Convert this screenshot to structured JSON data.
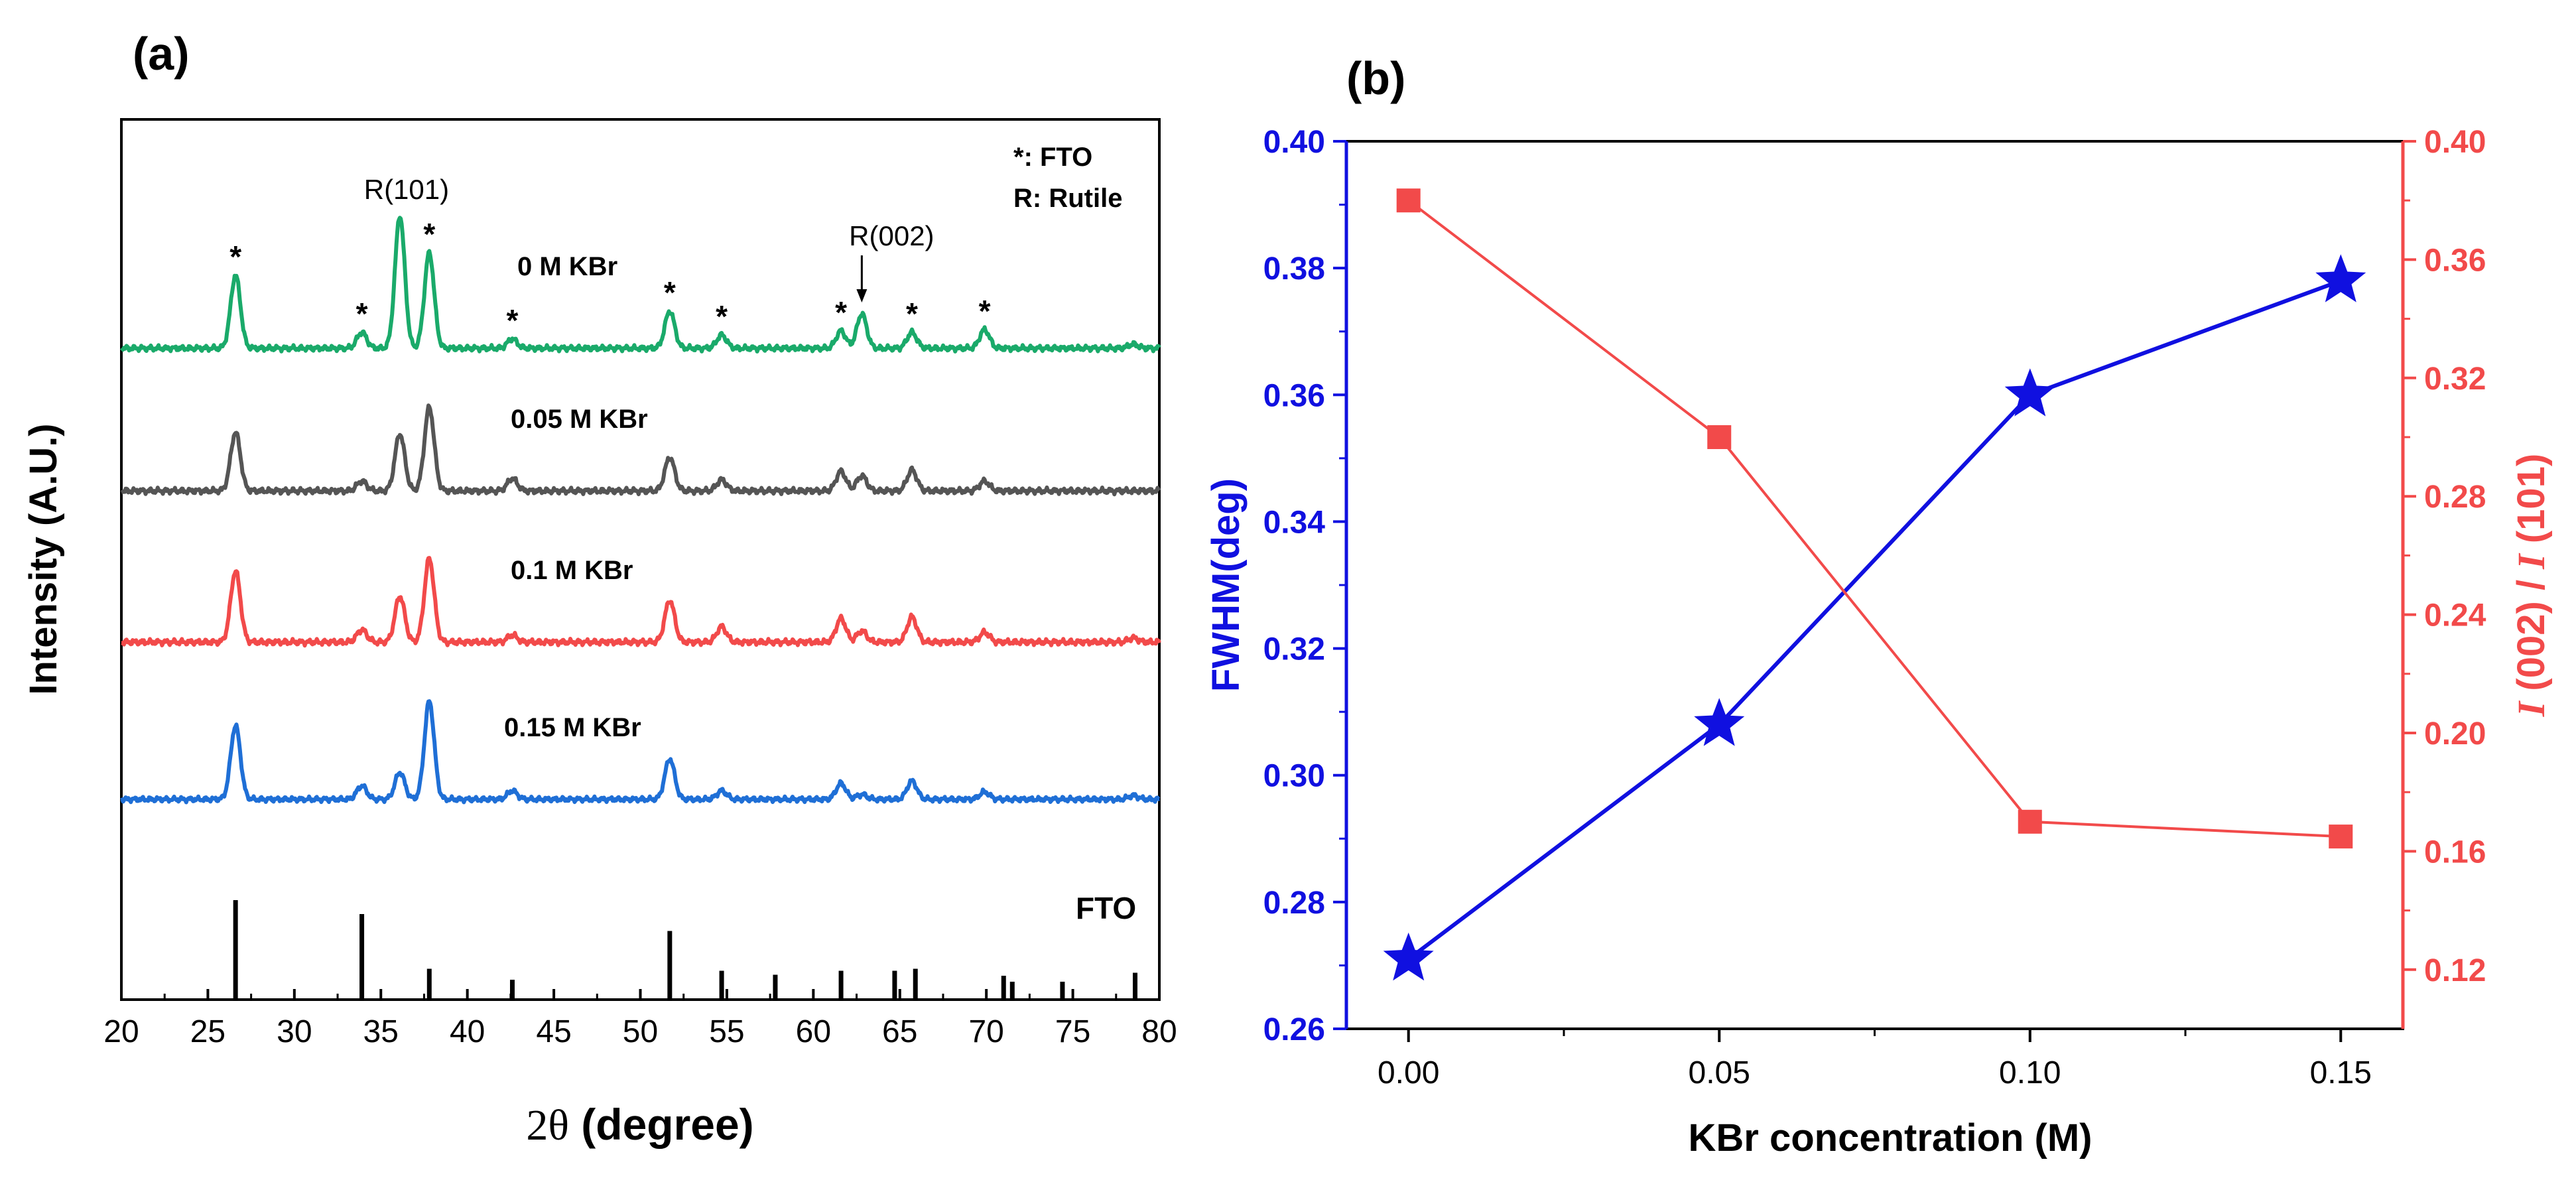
{
  "chart_data": [
    {
      "type": "line",
      "panel_label": "(a)",
      "title": "",
      "xlabel_symbol": "2θ",
      "xlabel_rest": " (degree)",
      "ylabel": "Intensity (A.U.)",
      "xlim": [
        20,
        80
      ],
      "x_ticks": [
        20,
        25,
        30,
        35,
        40,
        45,
        50,
        55,
        60,
        65,
        70,
        75,
        80
      ],
      "legend_lines": [
        "*: FTO",
        "R: Rutile"
      ],
      "peak_annotations": [
        {
          "label": "R(101)",
          "x": 36.1
        },
        {
          "label": "R(002)",
          "x": 62.8
        }
      ],
      "fto_star_positions": [
        26.6,
        33.9,
        37.8,
        42.6,
        51.7,
        54.7,
        61.6,
        65.7,
        69.9
      ],
      "series": [
        {
          "name": "0 M KBr",
          "color": "#1aaa6a",
          "peaks": [
            [
              26.6,
              0.55
            ],
            [
              33.9,
              0.12
            ],
            [
              36.1,
              1.0
            ],
            [
              37.8,
              0.72
            ],
            [
              42.6,
              0.07
            ],
            [
              51.7,
              0.28
            ],
            [
              54.7,
              0.1
            ],
            [
              61.6,
              0.13
            ],
            [
              62.8,
              0.26
            ],
            [
              65.7,
              0.12
            ],
            [
              69.9,
              0.14
            ],
            [
              78.5,
              0.03
            ]
          ]
        },
        {
          "name": "0.05 M KBr",
          "color": "#555555",
          "peaks": [
            [
              26.6,
              0.42
            ],
            [
              33.9,
              0.07
            ],
            [
              36.1,
              0.41
            ],
            [
              37.8,
              0.6
            ],
            [
              42.6,
              0.09
            ],
            [
              51.7,
              0.24
            ],
            [
              54.7,
              0.08
            ],
            [
              61.6,
              0.14
            ],
            [
              62.8,
              0.11
            ],
            [
              65.7,
              0.15
            ],
            [
              69.9,
              0.07
            ]
          ]
        },
        {
          "name": "0.1 M KBr",
          "color": "#f24a4a",
          "peaks": [
            [
              26.6,
              0.51
            ],
            [
              33.9,
              0.09
            ],
            [
              36.1,
              0.33
            ],
            [
              37.8,
              0.6
            ],
            [
              42.6,
              0.05
            ],
            [
              51.7,
              0.3
            ],
            [
              54.7,
              0.11
            ],
            [
              61.6,
              0.17
            ],
            [
              62.8,
              0.08
            ],
            [
              65.7,
              0.18
            ],
            [
              69.9,
              0.07
            ],
            [
              78.5,
              0.03
            ]
          ]
        },
        {
          "name": "0.15 M KBr",
          "color": "#1f6fd6",
          "peaks": [
            [
              26.6,
              0.6
            ],
            [
              33.9,
              0.11
            ],
            [
              36.1,
              0.22
            ],
            [
              37.8,
              0.8
            ],
            [
              42.6,
              0.07
            ],
            [
              51.7,
              0.33
            ],
            [
              54.7,
              0.07
            ],
            [
              61.6,
              0.13
            ],
            [
              62.8,
              0.04
            ],
            [
              65.7,
              0.15
            ],
            [
              69.9,
              0.06
            ],
            [
              78.5,
              0.03
            ]
          ]
        }
      ],
      "reference": {
        "name": "FTO",
        "color": "#000000",
        "lines": [
          [
            26.6,
            1.0
          ],
          [
            33.9,
            0.86
          ],
          [
            37.8,
            0.31
          ],
          [
            42.6,
            0.2
          ],
          [
            51.7,
            0.69
          ],
          [
            54.7,
            0.29
          ],
          [
            57.8,
            0.25
          ],
          [
            61.6,
            0.29
          ],
          [
            64.7,
            0.29
          ],
          [
            65.9,
            0.31
          ],
          [
            71.0,
            0.24
          ],
          [
            71.5,
            0.18
          ],
          [
            74.4,
            0.18
          ],
          [
            78.6,
            0.27
          ]
        ]
      }
    },
    {
      "type": "line",
      "panel_label": "(b)",
      "title": "",
      "xlabel": "KBr concentration (M)",
      "ylabel_left": "FWHM(deg)",
      "ylabel_right": "I (002) / I (101)",
      "ylabel_right_parts": [
        "I",
        " (002) / ",
        "I",
        " (101)"
      ],
      "x": [
        0.0,
        0.05,
        0.1,
        0.15
      ],
      "x_ticks": [
        "0.00",
        "0.05",
        "0.10",
        "0.15"
      ],
      "xlim": [
        -0.01,
        0.16
      ],
      "ylim_left": [
        0.26,
        0.4
      ],
      "yticks_left": [
        "0.26",
        "0.28",
        "0.30",
        "0.32",
        "0.34",
        "0.36",
        "0.38",
        "0.40"
      ],
      "ylim_right": [
        0.1,
        0.4
      ],
      "yticks_right": [
        "0.12",
        "0.16",
        "0.20",
        "0.24",
        "0.28",
        "0.32",
        "0.36",
        "0.40"
      ],
      "series": [
        {
          "name": "FWHM(deg)",
          "axis": "left",
          "color": "#1010e0",
          "marker": "star",
          "values": [
            0.271,
            0.308,
            0.36,
            0.378
          ]
        },
        {
          "name": "I(002)/I(101)",
          "axis": "right",
          "color": "#f24a4a",
          "marker": "square",
          "values": [
            0.38,
            0.3,
            0.17,
            0.165
          ]
        }
      ]
    }
  ]
}
